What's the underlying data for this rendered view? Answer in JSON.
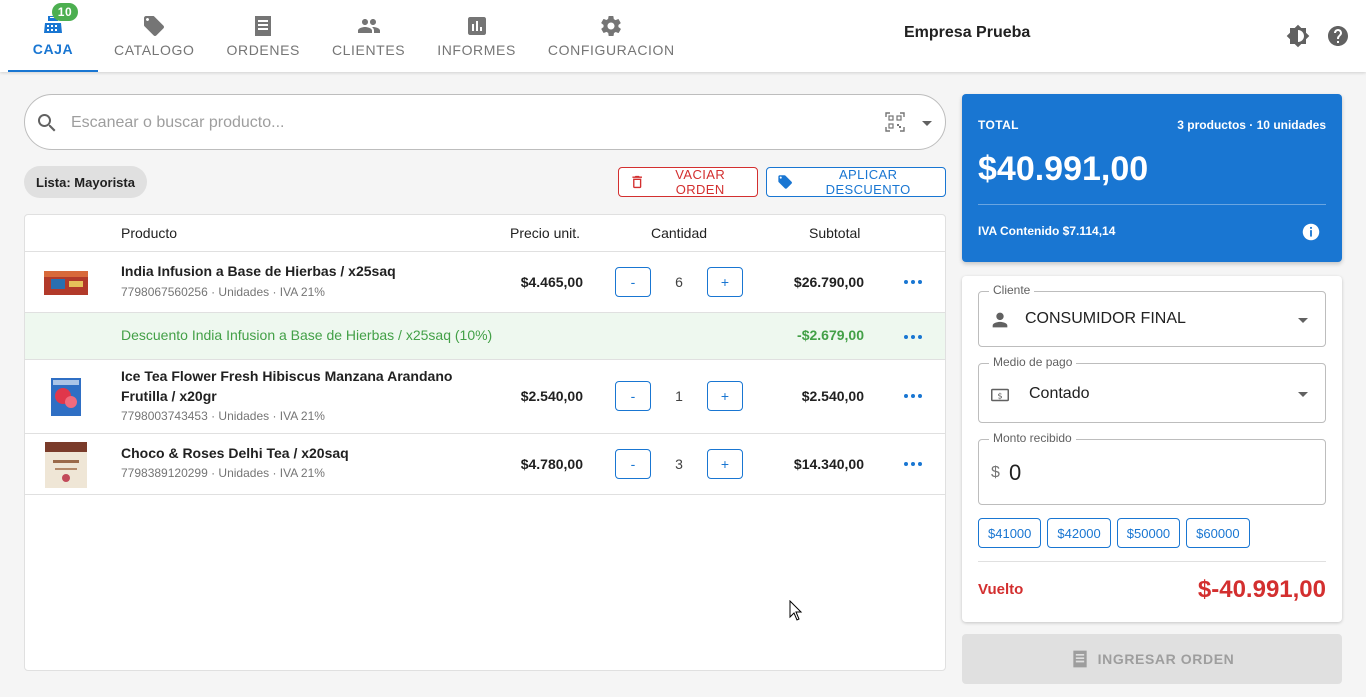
{
  "nav": {
    "tabs": [
      {
        "label": "CAJA",
        "icon": "cash-register-icon",
        "active": true,
        "badge": "10"
      },
      {
        "label": "CATALOGO",
        "icon": "tag-icon"
      },
      {
        "label": "ORDENES",
        "icon": "receipt-icon"
      },
      {
        "label": "CLIENTES",
        "icon": "people-icon"
      },
      {
        "label": "INFORMES",
        "icon": "bar-chart-icon"
      },
      {
        "label": "CONFIGURACION",
        "icon": "gear-icon"
      }
    ],
    "company": "Empresa Prueba"
  },
  "search": {
    "placeholder": "Escanear o buscar producto..."
  },
  "price_list": "Lista: Mayorista",
  "actions": {
    "clear": "VACIAR ORDEN",
    "discount": "APLICAR DESCUENTO"
  },
  "table": {
    "headers": {
      "product": "Producto",
      "unit_price": "Precio unit.",
      "quantity": "Cantidad",
      "subtotal": "Subtotal"
    },
    "rows": [
      {
        "name": "India Infusion a Base de Hierbas / x25saq",
        "meta": "7798067560256 · Unidades · IVA 21%",
        "price": "$4.465,00",
        "qty": "6",
        "subtotal": "$26.790,00"
      },
      {
        "name": "Ice Tea Flower Fresh Hibiscus Manzana Arandano Frutilla / x20gr",
        "meta": "7798003743453 · Unidades · IVA 21%",
        "price": "$2.540,00",
        "qty": "1",
        "subtotal": "$2.540,00"
      },
      {
        "name": "Choco & Roses Delhi Tea / x20saq",
        "meta": "7798389120299 · Unidades · IVA 21%",
        "price": "$4.780,00",
        "qty": "3",
        "subtotal": "$14.340,00"
      }
    ],
    "discount": {
      "label": "Descuento India Infusion a Base de Hierbas / x25saq (10%)",
      "value": "-$2.679,00"
    },
    "minus": "-",
    "plus": "+"
  },
  "total": {
    "label": "TOTAL",
    "count": "3 productos · 10 unidades",
    "value": "$40.991,00",
    "iva": "IVA Contenido $7.114,14"
  },
  "form": {
    "client_label": "Cliente",
    "client_value": "CONSUMIDOR FINAL",
    "payment_label": "Medio de pago",
    "payment_value": "Contado",
    "amount_label": "Monto recibido",
    "currency": "$",
    "amount_value": "0",
    "quick_amounts": [
      "$41000",
      "$42000",
      "$50000",
      "$60000"
    ],
    "change_label": "Vuelto",
    "change_value": "$-40.991,00"
  },
  "submit_label": "INGRESAR ORDEN",
  "colors": {
    "primary": "#1976d2",
    "danger": "#d32f2f",
    "success": "#43a047",
    "badge": "#4caf50"
  }
}
